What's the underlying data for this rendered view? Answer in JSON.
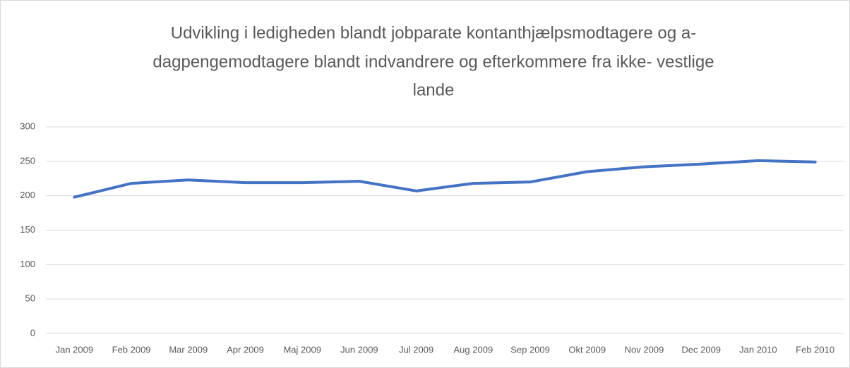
{
  "chart_data": {
    "type": "line",
    "title": [
      "Udvikling i ledigheden blandt jobparate kontanthjælpsmodtagere og a-",
      "dagpengemodtagere  blandt indvandrere og efterkommere fra ikke- vestlige",
      "lande"
    ],
    "categories": [
      "Jan 2009",
      "Feb 2009",
      "Mar 2009",
      "Apr 2009",
      "Maj 2009",
      "Jun 2009",
      "Jul 2009",
      "Aug 2009",
      "Sep 2009",
      "Okt 2009",
      "Nov 2009",
      "Dec 2009",
      "Jan 2010",
      "Feb 2010"
    ],
    "values": [
      198,
      218,
      223,
      219,
      219,
      221,
      207,
      218,
      220,
      235,
      242,
      246,
      251,
      249
    ],
    "color": "#4472c4",
    "ylim": [
      0,
      300
    ],
    "yticks": [
      0,
      50,
      100,
      150,
      200,
      250,
      300
    ],
    "grid": true
  }
}
